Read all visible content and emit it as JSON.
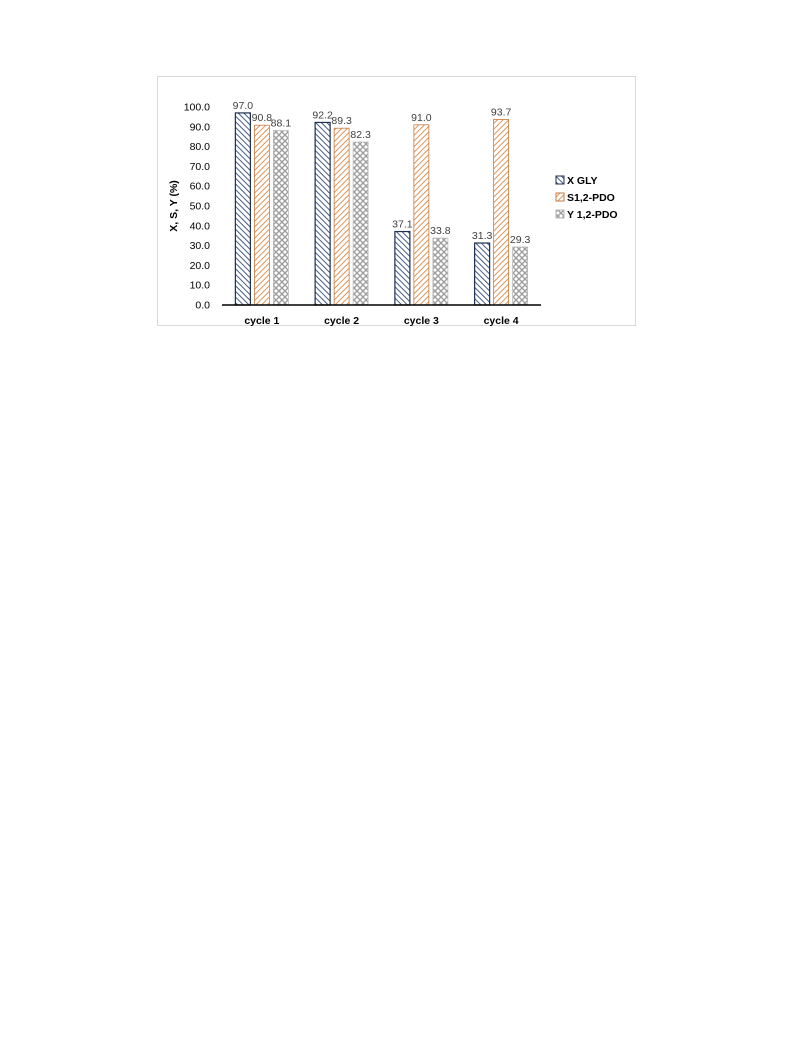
{
  "chart_data": {
    "type": "bar",
    "title": "",
    "xlabel": "",
    "ylabel": "X, S, Y (%)",
    "ylim": [
      0,
      100
    ],
    "yticks": [
      "0.0",
      "10.0",
      "20.0",
      "30.0",
      "40.0",
      "50.0",
      "60.0",
      "70.0",
      "80.0",
      "90.0",
      "100.0"
    ],
    "categories": [
      "cycle 1",
      "cycle 2",
      "cycle 3",
      "cycle 4"
    ],
    "series": [
      {
        "name": "X GLY",
        "values": [
          97.0,
          92.2,
          37.1,
          31.3
        ],
        "labels": [
          "97.0",
          "92.2",
          "37.1",
          "31.3"
        ],
        "color": "#4472c4",
        "pattern": "dark-downward-diagonal"
      },
      {
        "name": "S1,2-PDO",
        "values": [
          90.8,
          89.3,
          91.0,
          93.7
        ],
        "labels": [
          "90.8",
          "89.3",
          "91.0",
          "93.7"
        ],
        "color": "#ed7d31",
        "pattern": "wide-upward-diagonal"
      },
      {
        "name": "Y 1,2-PDO",
        "values": [
          88.1,
          82.3,
          33.8,
          29.3
        ],
        "labels": [
          "88.1",
          "82.3",
          "33.8",
          "29.3"
        ],
        "color": "#a5a5a5",
        "pattern": "trellis"
      }
    ],
    "grid": false,
    "legend_position": "right"
  }
}
